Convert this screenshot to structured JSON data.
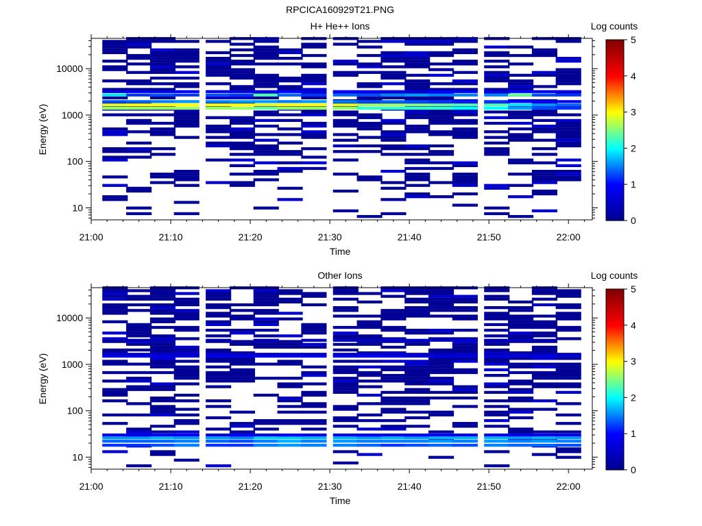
{
  "figure_title": "RPCICA160929T21.PNG",
  "colors": {
    "colormap": [
      "#00008f",
      "#0000ff",
      "#00ffff",
      "#ffff00",
      "#ff0000",
      "#800000"
    ]
  },
  "chart_data": [
    {
      "type": "heatmap",
      "title": "H+ He++ Ions",
      "xlabel": "Time",
      "ylabel": "Energy (eV)",
      "yscale": "log",
      "ylim": [
        5.5,
        45000
      ],
      "x_ticks": [
        "21:00",
        "21:10",
        "21:20",
        "21:30",
        "21:40",
        "21:50",
        "22:00"
      ],
      "y_ticks": [
        "10",
        "100",
        "1000",
        "10000"
      ],
      "colorbar": {
        "label": "Log counts",
        "range": [
          0,
          5
        ],
        "ticks": [
          "0",
          "1",
          "2",
          "3",
          "4",
          "5"
        ]
      },
      "time_bins": [
        "21:03",
        "21:06",
        "21:09",
        "21:12",
        "21:16",
        "21:19",
        "21:22",
        "21:25",
        "21:28",
        "21:32",
        "21:35",
        "21:38",
        "21:41",
        "21:44",
        "21:47",
        "21:51",
        "21:54",
        "21:57",
        "22:00"
      ],
      "bands": [
        {
          "energy_eV": 1400,
          "values": [
            2.6,
            2.6,
            2.6,
            2.6,
            2.6,
            2.6,
            2.4,
            2.6,
            2.6,
            2.6,
            2.2,
            2.2,
            2.2,
            2.2,
            2.0,
            2.0,
            1.6,
            1.3,
            1.2
          ]
        },
        {
          "energy_eV": 1650,
          "values": [
            2.9,
            3.0,
            3.0,
            3.0,
            3.0,
            3.0,
            2.9,
            3.0,
            3.0,
            2.9,
            2.6,
            2.6,
            2.5,
            2.4,
            2.3,
            2.3,
            1.9,
            1.6,
            1.4
          ]
        },
        {
          "energy_eV": 1950,
          "values": [
            1.3,
            1.4,
            1.5,
            1.6,
            1.5,
            1.6,
            1.6,
            1.5,
            1.6,
            1.5,
            1.3,
            1.4,
            1.3,
            1.2,
            1.1,
            1.2,
            1.0,
            0.9,
            0.8
          ]
        },
        {
          "energy_eV": 2700,
          "values": [
            1.9,
            1.2,
            1.3,
            1.2,
            1.3,
            1.2,
            2.3,
            1.4,
            1.2,
            1.4,
            1.3,
            1.5,
            1.6,
            1.5,
            1.5,
            1.5,
            2.4,
            1.3,
            1.2
          ]
        },
        {
          "energy_eV": 3200,
          "values": [
            0.6,
            0.8,
            0.7,
            0.9,
            0.7,
            0.6,
            0.8,
            1.0,
            0.7,
            0.9,
            0.8,
            0.7,
            0.6,
            0.9,
            0.8,
            0.7,
            0.9,
            0.8,
            0.7
          ]
        }
      ],
      "low_count_pattern": "scattered single-count bins (log counts 0–0.5) across 8 eV – 40 keV"
    },
    {
      "type": "heatmap",
      "title": "Other Ions",
      "xlabel": "Time",
      "ylabel": "Energy (eV)",
      "yscale": "log",
      "ylim": [
        5.5,
        45000
      ],
      "x_ticks": [
        "21:00",
        "21:10",
        "21:20",
        "21:30",
        "21:40",
        "21:50",
        "22:00"
      ],
      "y_ticks": [
        "10",
        "100",
        "1000",
        "10000"
      ],
      "colorbar": {
        "label": "Log counts",
        "range": [
          0,
          5
        ],
        "ticks": [
          "0",
          "1",
          "2",
          "3",
          "4",
          "5"
        ]
      },
      "time_bins": [
        "21:03",
        "21:06",
        "21:09",
        "21:12",
        "21:16",
        "21:19",
        "21:22",
        "21:25",
        "21:28",
        "21:32",
        "21:35",
        "21:38",
        "21:41",
        "21:44",
        "21:47",
        "21:51",
        "21:54",
        "21:57",
        "22:00"
      ],
      "bands": [
        {
          "energy_eV": 18,
          "values": [
            1.2,
            1.2,
            1.3,
            1.5,
            1.2,
            1.2,
            1.5,
            1.6,
            1.5,
            1.5,
            1.4,
            1.2,
            1.3,
            1.4,
            1.3,
            1.5,
            1.4,
            1.4,
            1.3
          ]
        },
        {
          "energy_eV": 22,
          "values": [
            1.4,
            1.4,
            1.4,
            1.5,
            1.4,
            1.3,
            1.5,
            1.7,
            1.5,
            1.6,
            1.5,
            1.5,
            1.5,
            1.6,
            1.5,
            1.6,
            1.5,
            1.6,
            1.5
          ]
        },
        {
          "energy_eV": 26,
          "values": [
            1.6,
            1.6,
            1.7,
            1.6,
            1.6,
            1.5,
            1.8,
            1.8,
            1.7,
            1.7,
            1.6,
            1.7,
            1.6,
            1.7,
            1.7,
            1.7,
            1.6,
            1.7,
            1.6
          ]
        },
        {
          "energy_eV": 30,
          "values": [
            0.9,
            0.8,
            1.0,
            0.9,
            0.7,
            0.9,
            0.8,
            1.0,
            0.9,
            0.8,
            0.9,
            0.8,
            0.9,
            1.0,
            0.8,
            0.9,
            0.8,
            0.9,
            0.8
          ]
        },
        {
          "energy_eV": 1500,
          "values": [
            0.8,
            0.9,
            0.8,
            0.7,
            0.9,
            0.8,
            0.9,
            0.8,
            0.9,
            0.8,
            0.9,
            0.8,
            0.7,
            0.8,
            0.7,
            0.8,
            0.7,
            0.8,
            0.6
          ]
        },
        {
          "energy_eV": 1650,
          "values": [
            0.6,
            0.5,
            0.5,
            0.5,
            0.6,
            0.5,
            0.5,
            0.6,
            0.5,
            0.5,
            0.6,
            0.5,
            0.5,
            0.4,
            0.5,
            0.4,
            0.5,
            0.4,
            0.4
          ]
        },
        {
          "energy_eV": 3300,
          "values": [
            0,
            0.4,
            0.4,
            0,
            0.3,
            0,
            0.4,
            0,
            0.5,
            0.5,
            0.4,
            0.6,
            0.6,
            0.5,
            0.6,
            0.4,
            0.4,
            0.3,
            0
          ]
        }
      ],
      "low_count_pattern": "scattered single-count bins (log counts 0–0.5) across 8 eV – 40 keV"
    }
  ]
}
